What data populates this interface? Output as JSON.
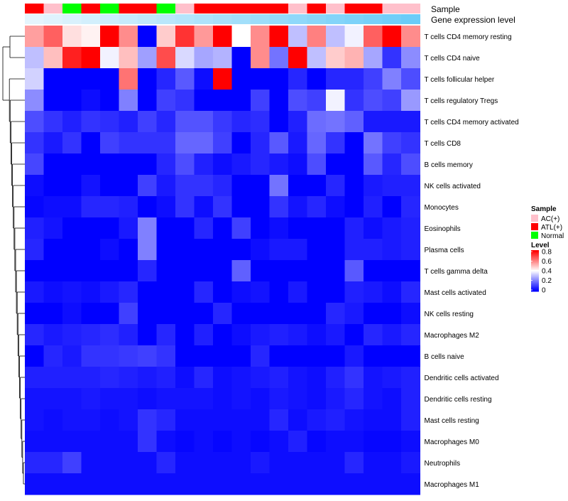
{
  "chart_data": {
    "type": "heatmap",
    "title": "",
    "annotation_labels": [
      "Sample",
      "Gene expression level"
    ],
    "sample_groups": [
      "ATL(+)",
      "AC(+)",
      "Normal",
      "ATL(+)",
      "Normal",
      "ATL(+)",
      "ATL(+)",
      "Normal",
      "AC(+)",
      "ATL(+)",
      "ATL(+)",
      "ATL(+)",
      "ATL(+)",
      "ATL(+)",
      "AC(+)",
      "ATL(+)",
      "AC(+)",
      "ATL(+)",
      "ATL(+)",
      "AC(+)",
      "AC(+)"
    ],
    "gene_expression_level": [
      0.02,
      0.06,
      0.1,
      0.14,
      0.18,
      0.22,
      0.26,
      0.3,
      0.34,
      0.38,
      0.42,
      0.46,
      0.5,
      0.54,
      0.58,
      0.62,
      0.66,
      0.7,
      0.74,
      0.78,
      0.82
    ],
    "rows": [
      "T cells CD4 memory resting",
      "T cells CD4 naive",
      "T cells follicular helper",
      "T cells regulatory  Tregs",
      "T cells CD4 memory activated",
      "T cells CD8",
      "B cells memory",
      "NK cells activated",
      "Monocytes",
      "Eosinophils",
      "Plasma cells",
      "T cells gamma delta",
      "Mast cells activated",
      "NK cells resting",
      "Macrophages M2",
      "B cells naive",
      "Dendritic cells activated",
      "Dendritic cells resting",
      "Mast cells resting",
      "Macrophages M0",
      "Neutrophils",
      "Macrophages M1"
    ],
    "values": [
      [
        0.55,
        0.65,
        0.45,
        0.42,
        0.8,
        0.58,
        0.0,
        0.48,
        0.72,
        0.56,
        0.8,
        0.4,
        0.58,
        0.8,
        0.3,
        0.6,
        0.3,
        0.38,
        0.65,
        0.8,
        0.58
      ],
      [
        0.3,
        0.5,
        0.75,
        0.8,
        0.38,
        0.5,
        0.25,
        0.68,
        0.34,
        0.26,
        0.28,
        0.0,
        0.58,
        0.18,
        0.82,
        0.3,
        0.48,
        0.52,
        0.26,
        0.08,
        0.22
      ],
      [
        0.33,
        0.0,
        0.0,
        0.0,
        0.0,
        0.62,
        0.0,
        0.06,
        0.14,
        0.02,
        0.82,
        0.0,
        0.0,
        0.0,
        0.06,
        0.0,
        0.06,
        0.06,
        0.1,
        0.2,
        0.12
      ],
      [
        0.22,
        0.0,
        0.0,
        0.02,
        0.0,
        0.2,
        0.0,
        0.1,
        0.08,
        0.0,
        0.0,
        0.0,
        0.1,
        0.0,
        0.12,
        0.1,
        0.38,
        0.08,
        0.12,
        0.1,
        0.24
      ],
      [
        0.12,
        0.08,
        0.05,
        0.08,
        0.07,
        0.05,
        0.1,
        0.06,
        0.13,
        0.13,
        0.09,
        0.06,
        0.07,
        0.0,
        0.05,
        0.17,
        0.18,
        0.15,
        0.04,
        0.04,
        0.04
      ],
      [
        0.08,
        0.04,
        0.08,
        0.0,
        0.1,
        0.08,
        0.08,
        0.08,
        0.16,
        0.16,
        0.1,
        0.0,
        0.06,
        0.14,
        0.04,
        0.16,
        0.08,
        0.0,
        0.18,
        0.1,
        0.08
      ],
      [
        0.11,
        0.0,
        0.0,
        0.0,
        0.0,
        0.0,
        0.0,
        0.06,
        0.12,
        0.05,
        0.02,
        0.04,
        0.06,
        0.04,
        0.02,
        0.12,
        0.0,
        0.0,
        0.14,
        0.06,
        0.12
      ],
      [
        0.02,
        0.0,
        0.0,
        0.03,
        0.0,
        0.0,
        0.1,
        0.04,
        0.08,
        0.08,
        0.06,
        0.0,
        0.0,
        0.18,
        0.0,
        0.0,
        0.06,
        0.0,
        0.04,
        0.05,
        0.05
      ],
      [
        0.01,
        0.02,
        0.02,
        0.06,
        0.06,
        0.05,
        0.0,
        0.02,
        0.08,
        0.02,
        0.08,
        0.0,
        0.0,
        0.08,
        0.03,
        0.06,
        0.02,
        0.0,
        0.05,
        0.0,
        0.06
      ],
      [
        0.05,
        0.03,
        0.0,
        0.0,
        0.0,
        0.04,
        0.2,
        0.0,
        0.0,
        0.06,
        0.0,
        0.1,
        0.0,
        0.02,
        0.0,
        0.0,
        0.0,
        0.05,
        0.02,
        0.04,
        0.05
      ],
      [
        0.06,
        0.0,
        0.0,
        0.0,
        0.02,
        0.0,
        0.2,
        0.0,
        0.0,
        0.0,
        0.0,
        0.0,
        0.02,
        0.04,
        0.04,
        0.0,
        0.0,
        0.05,
        0.05,
        0.04,
        0.05
      ],
      [
        0.0,
        0.0,
        0.0,
        0.0,
        0.0,
        0.0,
        0.06,
        0.0,
        0.0,
        0.0,
        0.0,
        0.15,
        0.0,
        0.0,
        0.0,
        0.0,
        0.0,
        0.14,
        0.0,
        0.0,
        0.0
      ],
      [
        0.04,
        0.02,
        0.03,
        0.02,
        0.04,
        0.06,
        0.0,
        0.0,
        0.0,
        0.06,
        0.0,
        0.02,
        0.03,
        0.0,
        0.04,
        0.0,
        0.0,
        0.05,
        0.04,
        0.02,
        0.06
      ],
      [
        0.0,
        0.0,
        0.02,
        0.0,
        0.0,
        0.1,
        0.0,
        0.0,
        0.0,
        0.0,
        0.06,
        0.0,
        0.0,
        0.0,
        0.0,
        0.0,
        0.06,
        0.04,
        0.0,
        0.0,
        0.02
      ],
      [
        0.06,
        0.04,
        0.05,
        0.06,
        0.07,
        0.05,
        0.0,
        0.06,
        0.0,
        0.05,
        0.0,
        0.02,
        0.04,
        0.05,
        0.04,
        0.02,
        0.04,
        0.0,
        0.06,
        0.04,
        0.06
      ],
      [
        0.0,
        0.06,
        0.04,
        0.08,
        0.08,
        0.09,
        0.1,
        0.08,
        0.0,
        0.0,
        0.0,
        0.0,
        0.06,
        0.0,
        0.0,
        0.0,
        0.0,
        0.04,
        0.0,
        0.0,
        0.0
      ],
      [
        0.05,
        0.05,
        0.05,
        0.05,
        0.06,
        0.05,
        0.04,
        0.05,
        0.02,
        0.06,
        0.02,
        0.03,
        0.04,
        0.05,
        0.03,
        0.02,
        0.05,
        0.08,
        0.03,
        0.04,
        0.05
      ],
      [
        0.03,
        0.03,
        0.03,
        0.04,
        0.03,
        0.03,
        0.02,
        0.03,
        0.03,
        0.03,
        0.02,
        0.03,
        0.02,
        0.04,
        0.03,
        0.02,
        0.04,
        0.06,
        0.03,
        0.02,
        0.05
      ],
      [
        0.03,
        0.02,
        0.03,
        0.03,
        0.02,
        0.03,
        0.08,
        0.06,
        0.02,
        0.02,
        0.02,
        0.02,
        0.02,
        0.06,
        0.02,
        0.04,
        0.05,
        0.03,
        0.02,
        0.02,
        0.05
      ],
      [
        0.02,
        0.02,
        0.02,
        0.02,
        0.02,
        0.02,
        0.08,
        0.02,
        0.01,
        0.02,
        0.01,
        0.02,
        0.01,
        0.02,
        0.05,
        0.01,
        0.02,
        0.02,
        0.01,
        0.01,
        0.02
      ],
      [
        0.06,
        0.06,
        0.1,
        0.02,
        0.02,
        0.02,
        0.02,
        0.06,
        0.02,
        0.02,
        0.02,
        0.02,
        0.04,
        0.02,
        0.02,
        0.02,
        0.02,
        0.06,
        0.02,
        0.02,
        0.04
      ],
      [
        0.02,
        0.02,
        0.02,
        0.02,
        0.02,
        0.02,
        0.02,
        0.02,
        0.02,
        0.02,
        0.02,
        0.02,
        0.02,
        0.02,
        0.02,
        0.02,
        0.02,
        0.02,
        0.02,
        0.02,
        0.02
      ]
    ],
    "dendrogram": "hierarchical clustering of rows (left side)",
    "legend_sample": {
      "title": "Sample",
      "entries": [
        {
          "label": "AC(+)",
          "color": "#ffc0cb"
        },
        {
          "label": "ATL(+)",
          "color": "#ff0000"
        },
        {
          "label": "Normal",
          "color": "#00ff00"
        }
      ]
    },
    "legend_level": {
      "title": "Level",
      "ticks": [
        "0.8",
        "0.6",
        "0.4",
        "0.2",
        "0"
      ],
      "range": [
        0,
        0.8
      ]
    },
    "colors": {
      "low": "#0000ff",
      "mid": "#ffffff",
      "high": "#ff0000",
      "expr_low": "#e8f6fd",
      "expr_high": "#4fc3f7"
    }
  }
}
